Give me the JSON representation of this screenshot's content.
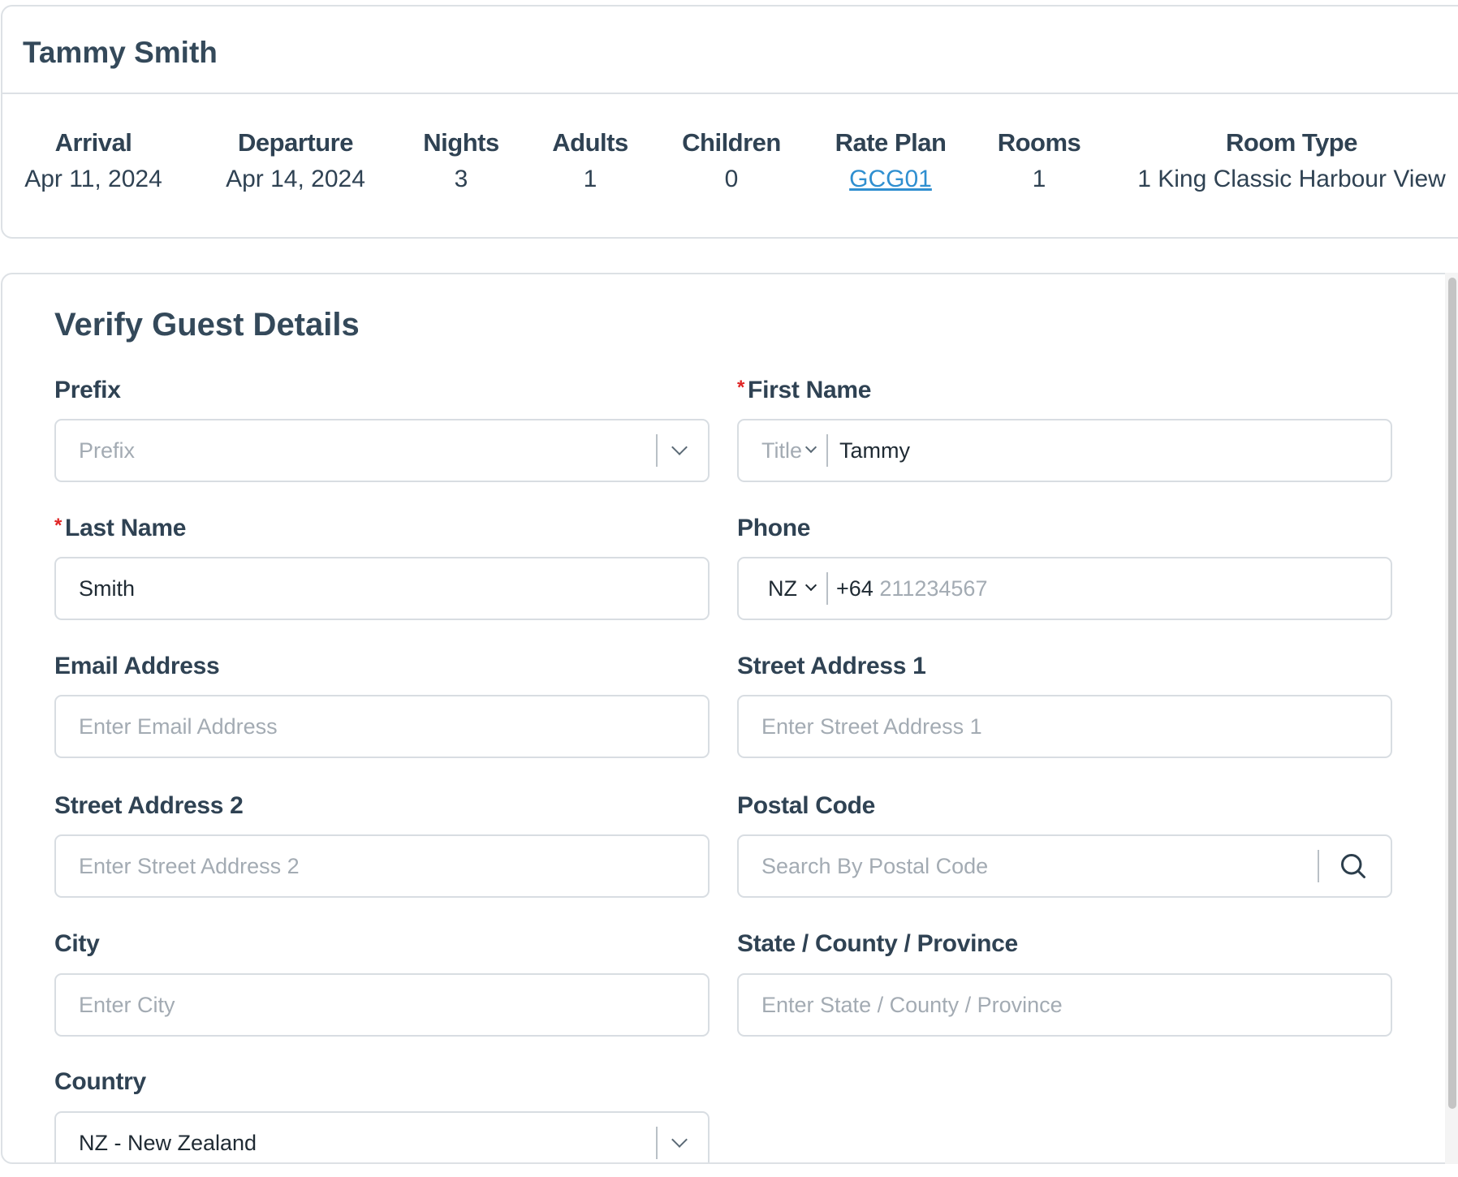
{
  "guest_name": "Tammy Smith",
  "stats": [
    {
      "label": "Arrival",
      "value": "Apr 11, 2024"
    },
    {
      "label": "Departure",
      "value": "Apr 14, 2024"
    },
    {
      "label": "Nights",
      "value": "3"
    },
    {
      "label": "Adults",
      "value": "1"
    },
    {
      "label": "Children",
      "value": "0"
    },
    {
      "label": "Rate Plan",
      "value": "GCG01"
    },
    {
      "label": "Rooms",
      "value": "1"
    },
    {
      "label": "Room Type",
      "value": "1 King Classic Harbour View"
    }
  ],
  "form": {
    "title": "Verify Guest Details",
    "required_mark": "*",
    "prefix": {
      "label": "Prefix",
      "placeholder": "Prefix"
    },
    "first_name": {
      "label": "First Name",
      "title_placeholder": "Title",
      "value": "Tammy"
    },
    "last_name": {
      "label": "Last Name",
      "value": "Smith"
    },
    "phone": {
      "label": "Phone",
      "country": "NZ",
      "code": "+64",
      "placeholder": "211234567"
    },
    "email": {
      "label": "Email Address",
      "placeholder": "Enter Email Address"
    },
    "street1": {
      "label": "Street Address 1",
      "placeholder": "Enter Street Address 1"
    },
    "street2": {
      "label": "Street Address 2",
      "placeholder": "Enter Street Address 2"
    },
    "postal": {
      "label": "Postal Code",
      "placeholder": "Search By Postal Code"
    },
    "city": {
      "label": "City",
      "placeholder": "Enter City"
    },
    "state": {
      "label": "State / County / Province",
      "placeholder": "Enter State / County / Province"
    },
    "country": {
      "label": "Country",
      "value": "NZ - New Zealand"
    }
  },
  "colors": {
    "link": "#2f8fd0",
    "required": "#e02424"
  }
}
